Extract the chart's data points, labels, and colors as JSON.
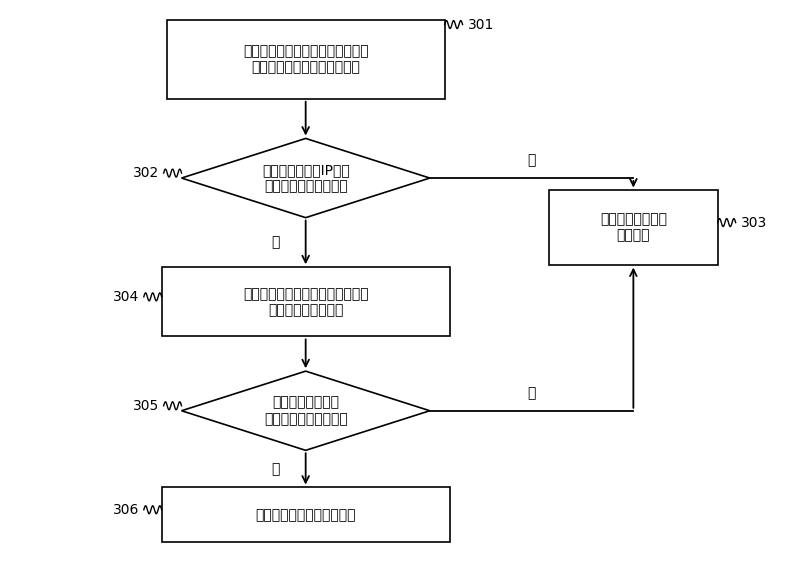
{
  "bg_color": "#ffffff",
  "box_color": "#ffffff",
  "box_edge_color": "#000000",
  "text_color": "#000000",
  "font_size": 10,
  "node301_text": "接收客户端发送的用于请求与邻居\n节点建立连接的连接请求消息",
  "node302_text": "判断邻居节点的IP地址\n是否在邻居节点列表中",
  "node303_text": "拒绝所述客户端的\n连接请求",
  "node304_text": "根据数据下载速率计算得到客户端\n的邻居节点数目阈值",
  "node305_text": "判断当前邻居节点\n连接数目是否等于阈值",
  "node306_text": "接受客户端发起该连接请求",
  "label301": "301",
  "label302": "302",
  "label303": "303",
  "label304": "304",
  "label305": "305",
  "label306": "306",
  "yes_text": "是",
  "no_text": "否"
}
